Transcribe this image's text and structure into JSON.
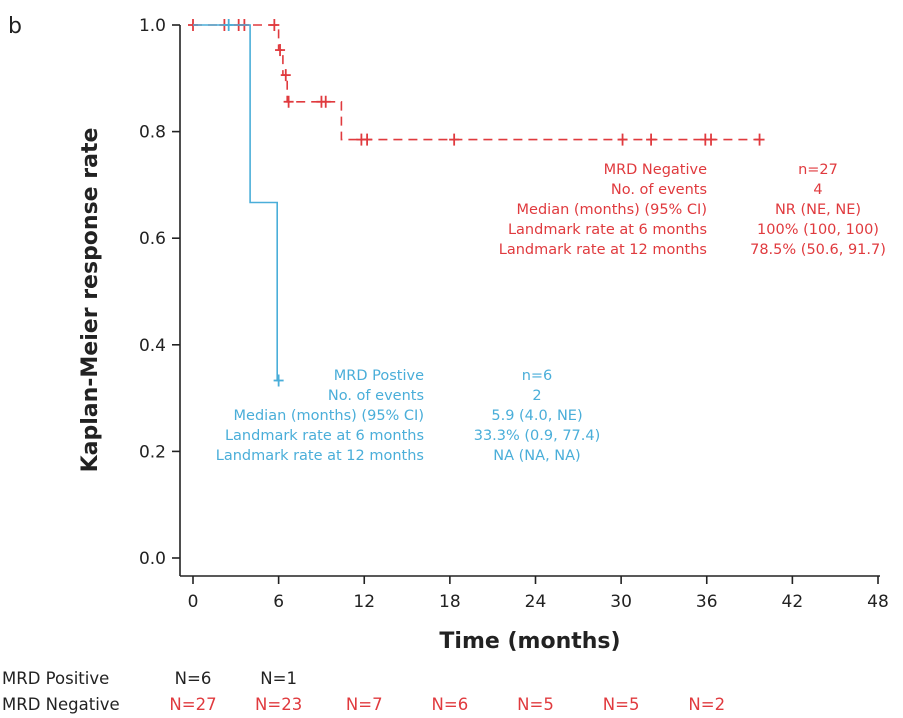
{
  "panel_label": "b",
  "colors": {
    "negative": "#e03a3e",
    "positive": "#4aaed9",
    "axis": "#222222"
  },
  "chart_data": {
    "type": "line",
    "subtype": "kaplan-meier",
    "xlabel": "Time (months)",
    "ylabel": "Kaplan-Meier response rate",
    "xlim": [
      0,
      48
    ],
    "ylim": [
      0,
      1.0
    ],
    "x_ticks": [
      "0",
      "6",
      "12",
      "18",
      "24",
      "30",
      "36",
      "42",
      "48"
    ],
    "y_ticks": [
      "0.0",
      "0.2",
      "0.4",
      "0.6",
      "0.8",
      "1.0"
    ],
    "grid": false,
    "series": [
      {
        "name": "MRD Negative",
        "color": "#e03a3e",
        "line_style": "dashed",
        "steps": [
          [
            0,
            1.0
          ],
          [
            6.0,
            1.0
          ],
          [
            6.0,
            0.953
          ],
          [
            6.3,
            0.953
          ],
          [
            6.3,
            0.906
          ],
          [
            6.6,
            0.906
          ],
          [
            6.6,
            0.856
          ],
          [
            10.4,
            0.856
          ],
          [
            10.4,
            0.785
          ],
          [
            39.7,
            0.785
          ]
        ],
        "censor": [
          [
            0,
            1.0
          ],
          [
            2.2,
            1.0
          ],
          [
            3.2,
            1.0
          ],
          [
            3.6,
            1.0
          ],
          [
            5.7,
            1.0
          ],
          [
            6.1,
            0.953
          ],
          [
            6.5,
            0.906
          ],
          [
            6.7,
            0.856
          ],
          [
            9.0,
            0.856
          ],
          [
            9.3,
            0.856
          ],
          [
            11.8,
            0.785
          ],
          [
            12.2,
            0.785
          ],
          [
            18.3,
            0.785
          ],
          [
            30.1,
            0.785
          ],
          [
            32.1,
            0.785
          ],
          [
            35.9,
            0.785
          ],
          [
            36.3,
            0.785
          ],
          [
            39.7,
            0.785
          ]
        ]
      },
      {
        "name": "MRD Positive",
        "color": "#4aaed9",
        "line_style": "solid",
        "steps": [
          [
            0,
            1.0
          ],
          [
            4.0,
            1.0
          ],
          [
            4.0,
            0.667
          ],
          [
            5.9,
            0.667
          ],
          [
            5.9,
            0.333
          ],
          [
            6.1,
            0.333
          ]
        ],
        "censor": [
          [
            2.5,
            1.0
          ],
          [
            6.0,
            0.333
          ]
        ]
      }
    ],
    "annotations": {
      "negative": {
        "labels": [
          "MRD Negative",
          "No. of events",
          "Median (months) (95% CI)",
          "Landmark rate at 6 months",
          "Landmark rate at 12 months"
        ],
        "values": [
          "n=27",
          "4",
          "NR (NE, NE)",
          "100% (100, 100)",
          "78.5% (50.6, 91.7)"
        ]
      },
      "positive": {
        "labels": [
          "MRD Postive",
          "No. of events",
          "Median (months) (95% CI)",
          "Landmark rate at 6 months",
          "Landmark rate at 12 months"
        ],
        "values": [
          "n=6",
          "2",
          "5.9 (4.0, NE)",
          "33.3% (0.9, 77.4)",
          "NA (NA, NA)"
        ]
      }
    },
    "risk_table": [
      {
        "group": "MRD Positive",
        "color": "#222222",
        "counts": [
          "N=6",
          "N=1"
        ]
      },
      {
        "group": "MRD Negative",
        "color": "#e03a3e",
        "counts": [
          "N=27",
          "N=23",
          "N=7",
          "N=6",
          "N=5",
          "N=5",
          "N=2"
        ]
      }
    ]
  }
}
